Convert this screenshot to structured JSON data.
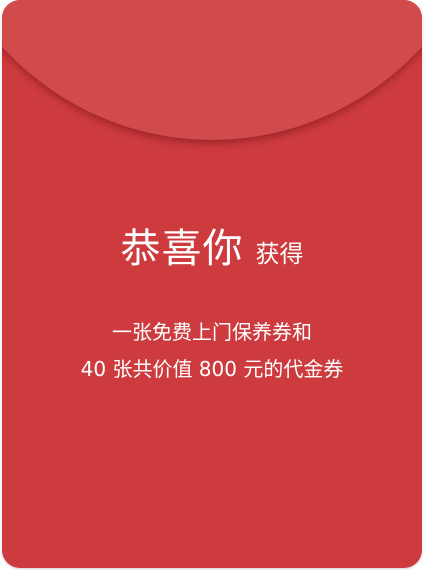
{
  "envelope": {
    "title": "恭喜你",
    "subtitle": "获得",
    "description_line1": "一张免费上门保养券和",
    "description_line2": "40 张共价值 800 元的代金券"
  },
  "colors": {
    "envelope_red": "#cd3b3e",
    "flap_red": "#d14a4c",
    "text": "#ffffff"
  }
}
